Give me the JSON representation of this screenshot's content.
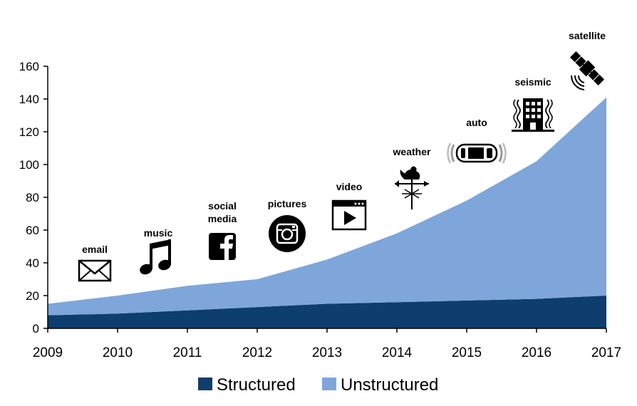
{
  "chart_data": {
    "type": "area",
    "stacked": true,
    "x": [
      "2009",
      "2010",
      "2011",
      "2012",
      "2013",
      "2014",
      "2015",
      "2016",
      "2017"
    ],
    "series": [
      {
        "name": "Structured",
        "values": [
          8,
          9,
          11,
          13,
          15,
          16,
          17,
          18,
          20
        ],
        "color": "#0d3e6e"
      },
      {
        "name": "Unstructured",
        "values": [
          7,
          11,
          15,
          17,
          27,
          42,
          61,
          84,
          121
        ],
        "color": "#7ea6da"
      }
    ],
    "ylim": [
      0,
      160
    ],
    "yticks": [
      0,
      20,
      40,
      60,
      80,
      100,
      120,
      140,
      160
    ],
    "grid": false,
    "legend": "bottom",
    "annotations": [
      {
        "label": "email",
        "icon": "envelope-icon"
      },
      {
        "label": "music",
        "icon": "music-note-icon"
      },
      {
        "label": "social media",
        "icon": "facebook-icon"
      },
      {
        "label": "pictures",
        "icon": "camera-icon"
      },
      {
        "label": "video",
        "icon": "video-player-icon"
      },
      {
        "label": "weather",
        "icon": "weather-vane-icon"
      },
      {
        "label": "auto",
        "icon": "car-icon"
      },
      {
        "label": "seismic",
        "icon": "building-icon"
      },
      {
        "label": "satellite",
        "icon": "satellite-icon"
      }
    ]
  }
}
